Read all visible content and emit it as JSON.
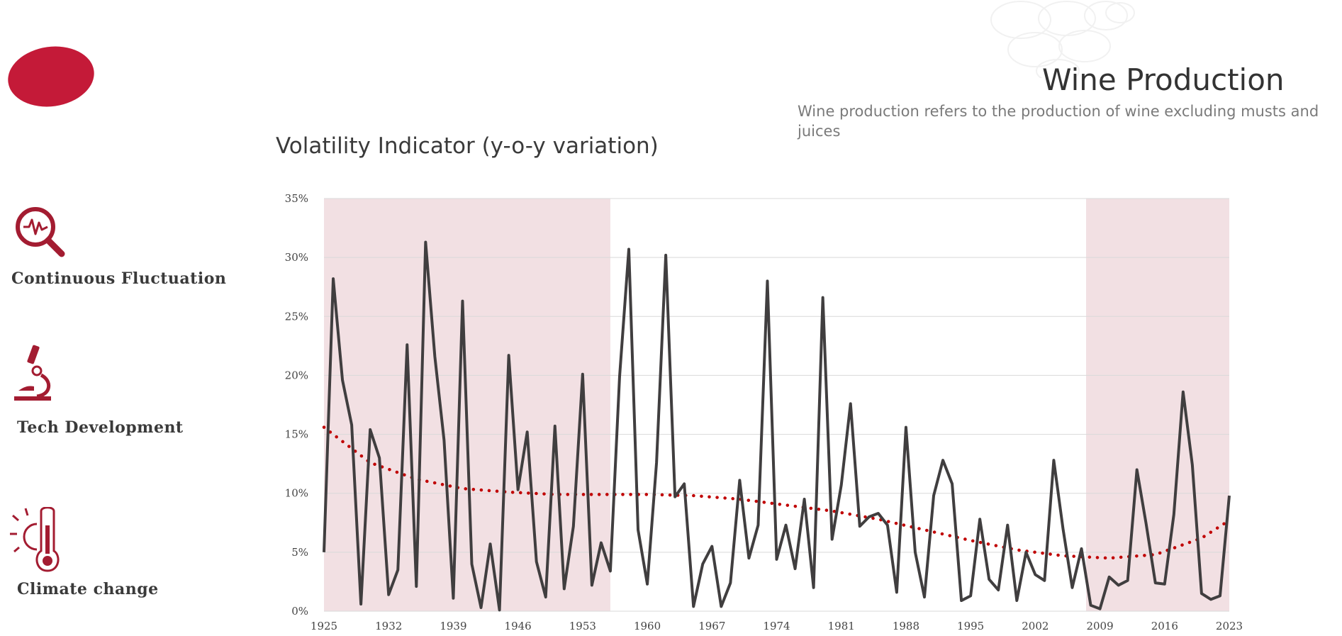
{
  "header": {
    "title": "Wine Production",
    "subtitle": "Wine production refers to the production of wine excluding musts and juices"
  },
  "sidebar": {
    "items": [
      {
        "icon": "magnifier-pulse-icon",
        "label": "Continuous Fluctuation"
      },
      {
        "icon": "microscope-icon",
        "label": "Tech Development"
      },
      {
        "icon": "thermometer-sun-icon",
        "label": "Climate change"
      }
    ]
  },
  "colors": {
    "accent": "#b5152b",
    "shade": "#f2e0e3",
    "line": "#403e3f",
    "trend": "#c00000",
    "grid": "#d9d9d9"
  },
  "chart_data": {
    "type": "line",
    "title": "Volatility Indicator (y-o-y variation)",
    "xlabel": "",
    "ylabel": "",
    "xlim": [
      1925,
      2023
    ],
    "ylim": [
      0,
      35
    ],
    "y_ticks": [
      "0%",
      "5%",
      "10%",
      "15%",
      "20%",
      "25%",
      "30%",
      "35%"
    ],
    "x_ticks": [
      "1925",
      "1932",
      "1939",
      "1946",
      "1953",
      "1960",
      "1967",
      "1974",
      "1981",
      "1988",
      "1995",
      "2002",
      "2009",
      "2016",
      "2023"
    ],
    "shaded_periods": [
      [
        1925,
        1956
      ],
      [
        2007.5,
        2023
      ]
    ],
    "series": [
      {
        "name": "y-o-y variation",
        "x": [
          1925,
          1926,
          1927,
          1928,
          1929,
          1930,
          1931,
          1932,
          1933,
          1934,
          1935,
          1936,
          1937,
          1938,
          1939,
          1940,
          1941,
          1942,
          1943,
          1944,
          1945,
          1946,
          1947,
          1948,
          1949,
          1950,
          1951,
          1952,
          1953,
          1954,
          1955,
          1956,
          1957,
          1958,
          1959,
          1960,
          1961,
          1962,
          1963,
          1964,
          1965,
          1966,
          1967,
          1968,
          1969,
          1970,
          1971,
          1972,
          1973,
          1974,
          1975,
          1976,
          1977,
          1978,
          1979,
          1980,
          1981,
          1982,
          1983,
          1984,
          1985,
          1986,
          1987,
          1988,
          1989,
          1990,
          1991,
          1992,
          1993,
          1994,
          1995,
          1996,
          1997,
          1998,
          1999,
          2000,
          2001,
          2002,
          2003,
          2004,
          2005,
          2006,
          2007,
          2008,
          2009,
          2010,
          2011,
          2012,
          2013,
          2014,
          2015,
          2016,
          2017,
          2018,
          2019,
          2020,
          2021,
          2022,
          2023
        ],
        "values": [
          5.0,
          28.2,
          19.6,
          15.8,
          0.6,
          15.4,
          13.0,
          1.4,
          3.5,
          22.6,
          2.1,
          31.3,
          21.6,
          14.5,
          1.1,
          26.3,
          4.0,
          0.3,
          5.7,
          0.1,
          21.7,
          10.3,
          15.2,
          4.2,
          1.2,
          15.7,
          1.9,
          7.2,
          20.1,
          2.2,
          5.8,
          3.4,
          19.9,
          30.7,
          6.9,
          2.3,
          12.6,
          30.2,
          9.7,
          10.8,
          0.4,
          4.0,
          5.5,
          0.4,
          2.4,
          11.1,
          4.5,
          7.3,
          28.0,
          4.4,
          7.3,
          3.6,
          9.5,
          2.0,
          26.6,
          6.1,
          10.7,
          17.6,
          7.2,
          8.0,
          8.3,
          7.3,
          1.6,
          15.6,
          5.0,
          1.2,
          9.8,
          12.8,
          10.8,
          0.9,
          1.3,
          7.8,
          2.7,
          1.8,
          7.3,
          0.9,
          5.0,
          3.1,
          2.6,
          12.8,
          7.0,
          2.0,
          5.3,
          0.5,
          0.2,
          2.9,
          2.2,
          2.6,
          12.0,
          7.4,
          2.4,
          2.3,
          8.2,
          18.6,
          12.4,
          1.5,
          1.0,
          1.3,
          9.8
        ]
      },
      {
        "name": "trend",
        "style": "dotted",
        "x": [
          1925,
          1930,
          1935,
          1940,
          1945,
          1950,
          1955,
          1960,
          1965,
          1970,
          1975,
          1980,
          1985,
          1990,
          1995,
          2000,
          2005,
          2010,
          2015,
          2020,
          2023
        ],
        "values": [
          15.6,
          12.6,
          11.2,
          10.4,
          10.1,
          9.9,
          9.9,
          9.9,
          9.8,
          9.5,
          9.0,
          8.5,
          7.8,
          6.9,
          6.0,
          5.2,
          4.7,
          4.5,
          4.8,
          6.2,
          7.7
        ]
      }
    ]
  }
}
